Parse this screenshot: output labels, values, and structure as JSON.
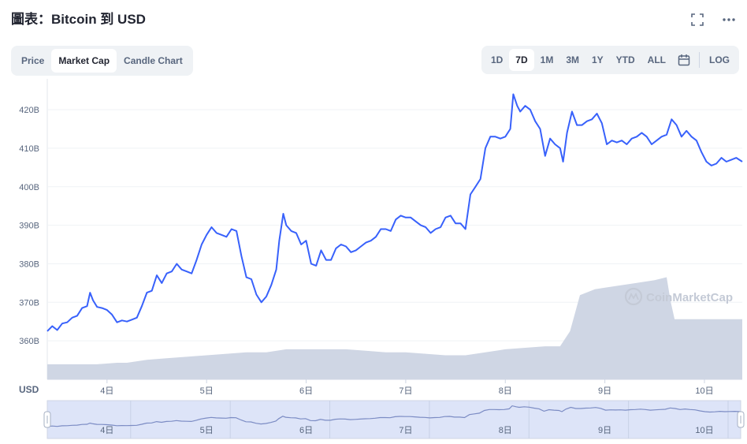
{
  "title": "圖表：Bitcoin 到 USD",
  "toolbar": {
    "expand_icon": "expand-icon",
    "more_icon": "more-icon"
  },
  "tabs": [
    {
      "label": "Price",
      "active": false
    },
    {
      "label": "Market Cap",
      "active": true
    },
    {
      "label": "Candle Chart",
      "active": false
    }
  ],
  "ranges": [
    {
      "label": "1D",
      "active": false
    },
    {
      "label": "7D",
      "active": true
    },
    {
      "label": "1M",
      "active": false
    },
    {
      "label": "3M",
      "active": false
    },
    {
      "label": "1Y",
      "active": false
    },
    {
      "label": "YTD",
      "active": false
    },
    {
      "label": "ALL",
      "active": false
    }
  ],
  "calendar_icon": "calendar-icon",
  "log_label": "LOG",
  "watermark": "CoinMarketCap",
  "colors": {
    "line": "#3861fb",
    "volume": "#cfd6e4",
    "navigator_fill": "#dde4f8",
    "grid": "#eff2f5",
    "text": "#58667e"
  },
  "chart_data": {
    "type": "line",
    "title": "",
    "ylabel": "USD",
    "ylim": [
      350,
      428
    ],
    "yticks": [
      360,
      370,
      380,
      390,
      400,
      410,
      420
    ],
    "ytick_labels": [
      "360B",
      "370B",
      "380B",
      "390B",
      "400B",
      "410B",
      "420B"
    ],
    "xlim": [
      3.4,
      10.38
    ],
    "xticks": [
      4,
      5,
      6,
      7,
      8,
      9,
      10
    ],
    "xtick_labels": [
      "4日",
      "5日",
      "6日",
      "7日",
      "8日",
      "9日",
      "10日"
    ],
    "series": [
      {
        "values_unit": "B USD",
        "points": [
          [
            3.4,
            362.5
          ],
          [
            3.45,
            363.8
          ],
          [
            3.5,
            362.8
          ],
          [
            3.55,
            364.5
          ],
          [
            3.6,
            364.8
          ],
          [
            3.65,
            366.0
          ],
          [
            3.7,
            366.5
          ],
          [
            3.75,
            368.5
          ],
          [
            3.8,
            369.0
          ],
          [
            3.83,
            372.5
          ],
          [
            3.86,
            370.5
          ],
          [
            3.9,
            368.8
          ],
          [
            3.95,
            368.5
          ],
          [
            4.0,
            368.0
          ],
          [
            4.05,
            366.8
          ],
          [
            4.1,
            364.8
          ],
          [
            4.15,
            365.3
          ],
          [
            4.2,
            365.0
          ],
          [
            4.25,
            365.5
          ],
          [
            4.3,
            366.0
          ],
          [
            4.35,
            369.0
          ],
          [
            4.4,
            372.5
          ],
          [
            4.45,
            373.0
          ],
          [
            4.5,
            377.0
          ],
          [
            4.55,
            375.0
          ],
          [
            4.6,
            377.5
          ],
          [
            4.65,
            378.0
          ],
          [
            4.7,
            380.0
          ],
          [
            4.75,
            378.5
          ],
          [
            4.8,
            378.0
          ],
          [
            4.85,
            377.5
          ],
          [
            4.9,
            381.0
          ],
          [
            4.95,
            385.0
          ],
          [
            5.0,
            387.5
          ],
          [
            5.05,
            389.5
          ],
          [
            5.1,
            388.0
          ],
          [
            5.15,
            387.5
          ],
          [
            5.2,
            387.0
          ],
          [
            5.25,
            389.0
          ],
          [
            5.3,
            388.5
          ],
          [
            5.35,
            382.0
          ],
          [
            5.4,
            376.5
          ],
          [
            5.45,
            376.0
          ],
          [
            5.5,
            372.0
          ],
          [
            5.55,
            370.0
          ],
          [
            5.6,
            371.5
          ],
          [
            5.65,
            374.5
          ],
          [
            5.7,
            378.5
          ],
          [
            5.73,
            386.0
          ],
          [
            5.77,
            393.0
          ],
          [
            5.8,
            390.0
          ],
          [
            5.85,
            388.5
          ],
          [
            5.9,
            388.0
          ],
          [
            5.95,
            385.0
          ],
          [
            6.0,
            386.0
          ],
          [
            6.05,
            380.0
          ],
          [
            6.1,
            379.5
          ],
          [
            6.15,
            383.5
          ],
          [
            6.2,
            381.0
          ],
          [
            6.25,
            381.0
          ],
          [
            6.3,
            384.0
          ],
          [
            6.35,
            385.0
          ],
          [
            6.4,
            384.5
          ],
          [
            6.45,
            383.0
          ],
          [
            6.5,
            383.5
          ],
          [
            6.55,
            384.5
          ],
          [
            6.6,
            385.5
          ],
          [
            6.65,
            386.0
          ],
          [
            6.7,
            387.0
          ],
          [
            6.75,
            389.0
          ],
          [
            6.8,
            389.0
          ],
          [
            6.85,
            388.5
          ],
          [
            6.9,
            391.5
          ],
          [
            6.95,
            392.5
          ],
          [
            7.0,
            392.0
          ],
          [
            7.05,
            392.0
          ],
          [
            7.1,
            391.0
          ],
          [
            7.15,
            390.0
          ],
          [
            7.2,
            389.5
          ],
          [
            7.25,
            388.0
          ],
          [
            7.3,
            389.0
          ],
          [
            7.35,
            389.5
          ],
          [
            7.4,
            392.0
          ],
          [
            7.45,
            392.5
          ],
          [
            7.5,
            390.5
          ],
          [
            7.55,
            390.5
          ],
          [
            7.6,
            389.0
          ],
          [
            7.65,
            398.0
          ],
          [
            7.7,
            400.0
          ],
          [
            7.75,
            402.0
          ],
          [
            7.8,
            410.0
          ],
          [
            7.85,
            413.0
          ],
          [
            7.9,
            413.0
          ],
          [
            7.95,
            412.5
          ],
          [
            8.0,
            413.0
          ],
          [
            8.05,
            415.0
          ],
          [
            8.08,
            424.0
          ],
          [
            8.12,
            421.0
          ],
          [
            8.15,
            419.5
          ],
          [
            8.2,
            421.0
          ],
          [
            8.25,
            420.0
          ],
          [
            8.3,
            417.0
          ],
          [
            8.35,
            415.0
          ],
          [
            8.4,
            408.0
          ],
          [
            8.45,
            412.5
          ],
          [
            8.5,
            411.0
          ],
          [
            8.55,
            410.0
          ],
          [
            8.58,
            406.5
          ],
          [
            8.62,
            414.0
          ],
          [
            8.67,
            419.5
          ],
          [
            8.72,
            416.0
          ],
          [
            8.77,
            416.0
          ],
          [
            8.82,
            417.0
          ],
          [
            8.87,
            417.5
          ],
          [
            8.92,
            419.0
          ],
          [
            8.97,
            416.5
          ],
          [
            9.02,
            411.0
          ],
          [
            9.07,
            412.0
          ],
          [
            9.12,
            411.5
          ],
          [
            9.17,
            412.0
          ],
          [
            9.22,
            411.0
          ],
          [
            9.27,
            412.5
          ],
          [
            9.32,
            413.0
          ],
          [
            9.37,
            414.0
          ],
          [
            9.42,
            413.0
          ],
          [
            9.47,
            411.0
          ],
          [
            9.52,
            412.0
          ],
          [
            9.57,
            413.0
          ],
          [
            9.62,
            413.5
          ],
          [
            9.67,
            417.5
          ],
          [
            9.72,
            416.0
          ],
          [
            9.77,
            413.0
          ],
          [
            9.82,
            414.5
          ],
          [
            9.87,
            413.0
          ],
          [
            9.92,
            412.0
          ],
          [
            9.97,
            409.0
          ],
          [
            10.02,
            406.5
          ],
          [
            10.07,
            405.5
          ],
          [
            10.12,
            406.0
          ],
          [
            10.17,
            407.5
          ],
          [
            10.22,
            406.5
          ],
          [
            10.27,
            407.0
          ],
          [
            10.32,
            407.5
          ],
          [
            10.38,
            406.5
          ]
        ]
      }
    ],
    "volume": {
      "points": [
        [
          3.4,
          0.05
        ],
        [
          3.7,
          0.05
        ],
        [
          3.9,
          0.05
        ],
        [
          4.1,
          0.055
        ],
        [
          4.2,
          0.055
        ],
        [
          4.3,
          0.06
        ],
        [
          4.4,
          0.065
        ],
        [
          4.6,
          0.07
        ],
        [
          4.8,
          0.075
        ],
        [
          5.0,
          0.08
        ],
        [
          5.2,
          0.085
        ],
        [
          5.4,
          0.09
        ],
        [
          5.6,
          0.09
        ],
        [
          5.8,
          0.1
        ],
        [
          6.0,
          0.1
        ],
        [
          6.2,
          0.1
        ],
        [
          6.4,
          0.1
        ],
        [
          6.6,
          0.095
        ],
        [
          6.8,
          0.09
        ],
        [
          7.0,
          0.09
        ],
        [
          7.2,
          0.085
        ],
        [
          7.4,
          0.08
        ],
        [
          7.6,
          0.08
        ],
        [
          7.8,
          0.09
        ],
        [
          8.0,
          0.1
        ],
        [
          8.2,
          0.105
        ],
        [
          8.4,
          0.11
        ],
        [
          8.55,
          0.11
        ],
        [
          8.65,
          0.16
        ],
        [
          8.7,
          0.22
        ],
        [
          8.75,
          0.28
        ],
        [
          8.9,
          0.3
        ],
        [
          9.1,
          0.31
        ],
        [
          9.3,
          0.32
        ],
        [
          9.5,
          0.33
        ],
        [
          9.62,
          0.34
        ],
        [
          9.66,
          0.26
        ],
        [
          9.7,
          0.2
        ],
        [
          10.0,
          0.2
        ],
        [
          10.38,
          0.2
        ]
      ]
    }
  }
}
